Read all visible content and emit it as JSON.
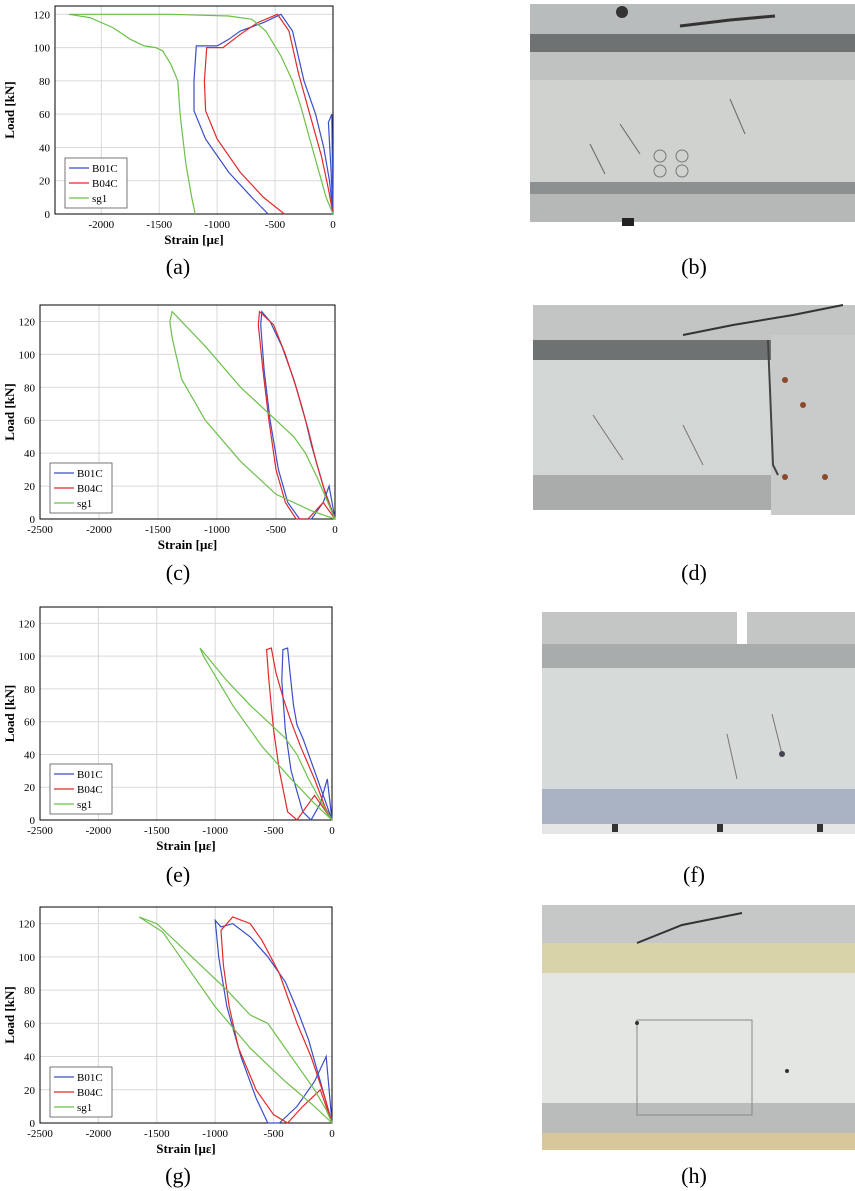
{
  "panels": [
    {
      "id": "a",
      "caption": "(a)",
      "kind": "chart",
      "chart_index": 0
    },
    {
      "id": "b",
      "caption": "(b)",
      "kind": "photo"
    },
    {
      "id": "c",
      "caption": "(c)",
      "kind": "chart",
      "chart_index": 1
    },
    {
      "id": "d",
      "caption": "(d)",
      "kind": "photo"
    },
    {
      "id": "e",
      "caption": "(e)",
      "kind": "chart",
      "chart_index": 2
    },
    {
      "id": "f",
      "caption": "(f)",
      "kind": "photo"
    },
    {
      "id": "g",
      "caption": "(g)",
      "kind": "chart",
      "chart_index": 3
    },
    {
      "id": "h",
      "caption": "(h)",
      "kind": "photo"
    }
  ],
  "colors": {
    "B01C": "#3a4ec8",
    "B04C": "#e02a2a",
    "sg1": "#6cc04a",
    "grid": "#d9d9d9",
    "axis": "#000000"
  },
  "chart_data": [
    {
      "type": "line",
      "xlabel": "Strain [με]",
      "ylabel": "Load [kN]",
      "xlim": [
        -2400,
        0
      ],
      "ylim": [
        0,
        125
      ],
      "xticks": [
        -2000,
        -1500,
        -1000,
        -500,
        0
      ],
      "yticks": [
        0,
        20,
        40,
        60,
        80,
        100,
        120
      ],
      "grid": true,
      "legend_position": "bottom-left",
      "series": [
        {
          "name": "B01C",
          "points": [
            [
              -560,
              0
            ],
            [
              -700,
              10
            ],
            [
              -900,
              25
            ],
            [
              -1100,
              45
            ],
            [
              -1200,
              62
            ],
            [
              -1200,
              80
            ],
            [
              -1180,
              101
            ],
            [
              -1000,
              101
            ],
            [
              -900,
              105
            ],
            [
              -800,
              110
            ],
            [
              -600,
              115
            ],
            [
              -450,
              120
            ],
            [
              -350,
              110
            ],
            [
              -250,
              80
            ],
            [
              -150,
              60
            ],
            [
              -80,
              40
            ],
            [
              -30,
              20
            ],
            [
              0,
              0
            ],
            [
              -20,
              30
            ],
            [
              -40,
              55
            ],
            [
              -10,
              60
            ],
            [
              0,
              0
            ]
          ]
        },
        {
          "name": "B04C",
          "points": [
            [
              -420,
              0
            ],
            [
              -600,
              10
            ],
            [
              -800,
              25
            ],
            [
              -1000,
              45
            ],
            [
              -1100,
              62
            ],
            [
              -1110,
              80
            ],
            [
              -1090,
              100
            ],
            [
              -950,
              100
            ],
            [
              -800,
              108
            ],
            [
              -650,
              115
            ],
            [
              -480,
              120
            ],
            [
              -380,
              110
            ],
            [
              -300,
              85
            ],
            [
              -200,
              60
            ],
            [
              -100,
              35
            ],
            [
              -40,
              15
            ],
            [
              0,
              0
            ]
          ]
        },
        {
          "name": "sg1",
          "points": [
            [
              -1190,
              0
            ],
            [
              -1220,
              10
            ],
            [
              -1270,
              30
            ],
            [
              -1320,
              60
            ],
            [
              -1340,
              80
            ],
            [
              -1400,
              90
            ],
            [
              -1470,
              98
            ],
            [
              -1530,
              100
            ],
            [
              -1630,
              101
            ],
            [
              -1750,
              105
            ],
            [
              -1900,
              112
            ],
            [
              -2100,
              118
            ],
            [
              -2280,
              120
            ],
            [
              -1900,
              120
            ],
            [
              -1400,
              120
            ],
            [
              -900,
              119
            ],
            [
              -700,
              117
            ],
            [
              -580,
              110
            ],
            [
              -450,
              95
            ],
            [
              -350,
              80
            ],
            [
              -280,
              65
            ],
            [
              -200,
              45
            ],
            [
              -120,
              25
            ],
            [
              -60,
              10
            ],
            [
              0,
              0
            ]
          ]
        }
      ]
    },
    {
      "type": "line",
      "xlabel": "Strain [με]",
      "ylabel": "Load [kN]",
      "xlim": [
        -2500,
        0
      ],
      "ylim": [
        0,
        130
      ],
      "xticks": [
        -2500,
        -2000,
        -1500,
        -1000,
        -500,
        0
      ],
      "yticks": [
        0,
        20,
        40,
        60,
        80,
        100,
        120
      ],
      "grid": true,
      "legend_position": "bottom-left",
      "series": [
        {
          "name": "B01C",
          "points": [
            [
              0,
              0
            ],
            [
              -100,
              20
            ],
            [
              -200,
              45
            ],
            [
              -250,
              60
            ],
            [
              -280,
              68
            ],
            [
              -350,
              85
            ],
            [
              -450,
              105
            ],
            [
              -550,
              120
            ],
            [
              -620,
              126
            ],
            [
              -630,
              118
            ],
            [
              -600,
              90
            ],
            [
              -550,
              60
            ],
            [
              -480,
              30
            ],
            [
              -400,
              10
            ],
            [
              -300,
              0
            ],
            [
              -200,
              0
            ],
            [
              -100,
              10
            ],
            [
              -50,
              20
            ],
            [
              0,
              0
            ]
          ]
        },
        {
          "name": "B04C",
          "points": [
            [
              0,
              0
            ],
            [
              -80,
              15
            ],
            [
              -160,
              35
            ],
            [
              -230,
              55
            ],
            [
              -270,
              65
            ],
            [
              -330,
              80
            ],
            [
              -420,
              100
            ],
            [
              -520,
              118
            ],
            [
              -640,
              126
            ],
            [
              -650,
              118
            ],
            [
              -610,
              90
            ],
            [
              -560,
              60
            ],
            [
              -500,
              30
            ],
            [
              -420,
              10
            ],
            [
              -330,
              0
            ],
            [
              -230,
              0
            ],
            [
              -100,
              10
            ],
            [
              0,
              0
            ]
          ]
        },
        {
          "name": "sg1",
          "points": [
            [
              0,
              0
            ],
            [
              -200,
              5
            ],
            [
              -500,
              15
            ],
            [
              -800,
              35
            ],
            [
              -1100,
              60
            ],
            [
              -1300,
              85
            ],
            [
              -1380,
              110
            ],
            [
              -1400,
              120
            ],
            [
              -1380,
              126
            ],
            [
              -1100,
              105
            ],
            [
              -800,
              80
            ],
            [
              -500,
              60
            ],
            [
              -350,
              50
            ],
            [
              -250,
              40
            ],
            [
              -150,
              25
            ],
            [
              -60,
              10
            ],
            [
              0,
              0
            ]
          ]
        }
      ]
    },
    {
      "type": "line",
      "xlabel": "Strain [με]",
      "ylabel": "Load [kN]",
      "xlim": [
        -2500,
        0
      ],
      "ylim": [
        0,
        130
      ],
      "xticks": [
        -2500,
        -2000,
        -1500,
        -1000,
        -500,
        0
      ],
      "yticks": [
        0,
        20,
        40,
        60,
        80,
        100,
        120
      ],
      "grid": true,
      "legend_position": "bottom-left",
      "series": [
        {
          "name": "B01C",
          "points": [
            [
              0,
              0
            ],
            [
              -50,
              10
            ],
            [
              -150,
              30
            ],
            [
              -250,
              50
            ],
            [
              -300,
              58
            ],
            [
              -330,
              70
            ],
            [
              -360,
              90
            ],
            [
              -380,
              105
            ],
            [
              -420,
              104
            ],
            [
              -430,
              85
            ],
            [
              -400,
              55
            ],
            [
              -350,
              30
            ],
            [
              -250,
              5
            ],
            [
              -180,
              0
            ],
            [
              -100,
              10
            ],
            [
              -40,
              25
            ],
            [
              0,
              0
            ]
          ]
        },
        {
          "name": "B04C",
          "points": [
            [
              0,
              0
            ],
            [
              -60,
              8
            ],
            [
              -150,
              25
            ],
            [
              -270,
              45
            ],
            [
              -350,
              60
            ],
            [
              -420,
              75
            ],
            [
              -480,
              90
            ],
            [
              -520,
              105
            ],
            [
              -560,
              104
            ],
            [
              -540,
              85
            ],
            [
              -500,
              55
            ],
            [
              -450,
              30
            ],
            [
              -380,
              5
            ],
            [
              -300,
              0
            ],
            [
              -150,
              15
            ],
            [
              0,
              0
            ]
          ]
        },
        {
          "name": "sg1",
          "points": [
            [
              0,
              0
            ],
            [
              -150,
              10
            ],
            [
              -350,
              25
            ],
            [
              -600,
              45
            ],
            [
              -850,
              70
            ],
            [
              -1000,
              88
            ],
            [
              -1100,
              100
            ],
            [
              -1130,
              105
            ],
            [
              -900,
              85
            ],
            [
              -700,
              70
            ],
            [
              -550,
              60
            ],
            [
              -400,
              50
            ],
            [
              -300,
              40
            ],
            [
              -200,
              25
            ],
            [
              -100,
              12
            ],
            [
              0,
              0
            ]
          ]
        }
      ]
    },
    {
      "type": "line",
      "xlabel": "Strain [με]",
      "ylabel": "Load [kN]",
      "xlim": [
        -2500,
        0
      ],
      "ylim": [
        0,
        130
      ],
      "xticks": [
        -2500,
        -2000,
        -1500,
        -1000,
        -500,
        0
      ],
      "yticks": [
        0,
        20,
        40,
        60,
        80,
        100,
        120
      ],
      "grid": true,
      "legend_position": "bottom-left",
      "series": [
        {
          "name": "B01C",
          "points": [
            [
              0,
              0
            ],
            [
              -80,
              20
            ],
            [
              -200,
              50
            ],
            [
              -280,
              65
            ],
            [
              -400,
              85
            ],
            [
              -550,
              100
            ],
            [
              -700,
              112
            ],
            [
              -850,
              120
            ],
            [
              -950,
              118
            ],
            [
              -1000,
              122
            ],
            [
              -970,
              100
            ],
            [
              -900,
              70
            ],
            [
              -780,
              40
            ],
            [
              -650,
              15
            ],
            [
              -550,
              0
            ],
            [
              -450,
              0
            ],
            [
              -300,
              10
            ],
            [
              -150,
              25
            ],
            [
              -50,
              40
            ],
            [
              0,
              0
            ]
          ]
        },
        {
          "name": "B04C",
          "points": [
            [
              0,
              0
            ],
            [
              -60,
              15
            ],
            [
              -180,
              40
            ],
            [
              -300,
              60
            ],
            [
              -450,
              90
            ],
            [
              -600,
              110
            ],
            [
              -700,
              120
            ],
            [
              -850,
              124
            ],
            [
              -950,
              116
            ],
            [
              -930,
              95
            ],
            [
              -880,
              70
            ],
            [
              -800,
              45
            ],
            [
              -650,
              20
            ],
            [
              -500,
              5
            ],
            [
              -380,
              0
            ],
            [
              -250,
              10
            ],
            [
              -100,
              20
            ],
            [
              0,
              0
            ]
          ]
        },
        {
          "name": "sg1",
          "points": [
            [
              0,
              0
            ],
            [
              -150,
              10
            ],
            [
              -400,
              25
            ],
            [
              -700,
              45
            ],
            [
              -1000,
              70
            ],
            [
              -1250,
              95
            ],
            [
              -1450,
              115
            ],
            [
              -1650,
              124
            ],
            [
              -1500,
              120
            ],
            [
              -1200,
              100
            ],
            [
              -900,
              80
            ],
            [
              -700,
              65
            ],
            [
              -550,
              60
            ],
            [
              -450,
              50
            ],
            [
              -300,
              35
            ],
            [
              -150,
              20
            ],
            [
              -50,
              8
            ],
            [
              0,
              0
            ]
          ]
        }
      ]
    }
  ]
}
